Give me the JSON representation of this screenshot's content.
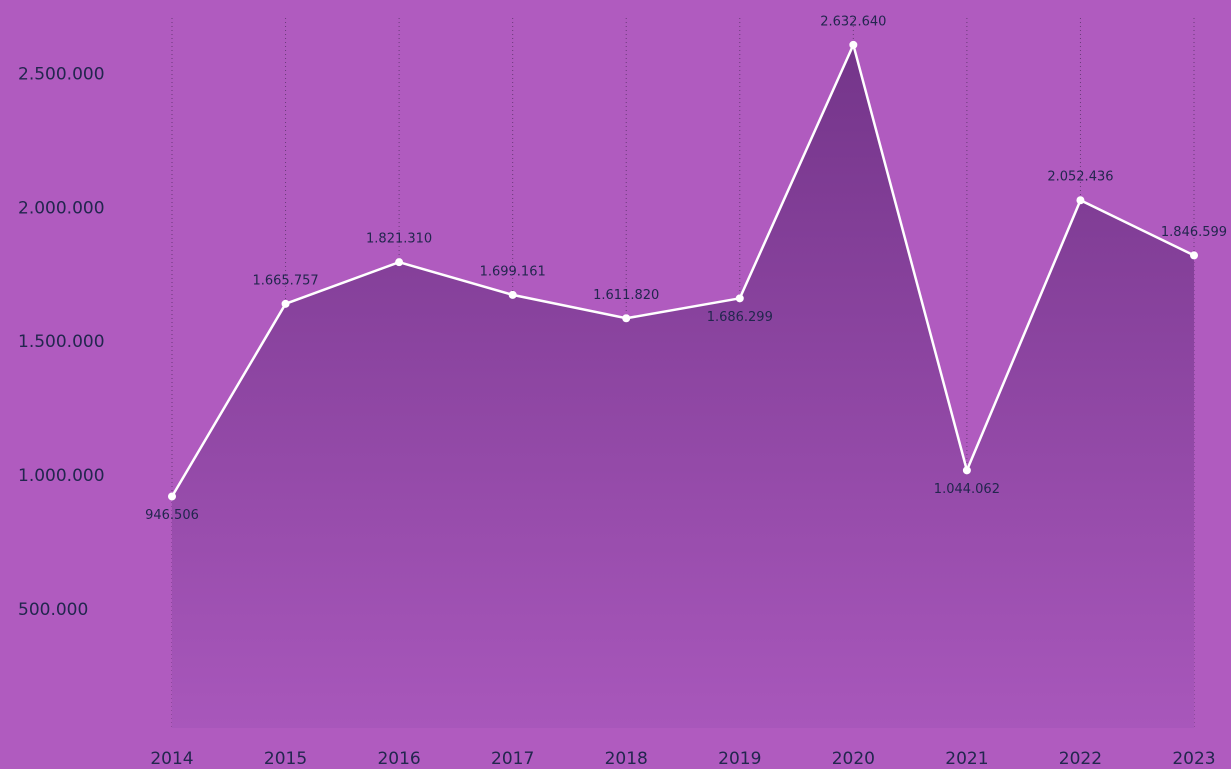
{
  "chart_data": {
    "type": "area",
    "categories": [
      "2014",
      "2015",
      "2016",
      "2017",
      "2018",
      "2019",
      "2020",
      "2021",
      "2022",
      "2023"
    ],
    "values": [
      946506,
      1665757,
      1821310,
      1699161,
      1611820,
      1686299,
      2632640,
      1044062,
      2052436,
      1846599
    ],
    "value_labels": [
      "946.506",
      "1.665.757",
      "1.821.310",
      "1.699.161",
      "1.611.820",
      "1.686.299",
      "2.632.640",
      "1.044.062",
      "2.052.436",
      "1.846.599"
    ],
    "color": "#ffffff",
    "ylim": [
      0,
      2800000
    ],
    "yticks": [
      {
        "value": 500000,
        "label": "500.000"
      },
      {
        "value": 1000000,
        "label": "1.000.000"
      },
      {
        "value": 1500000,
        "label": "1.500.000"
      },
      {
        "value": 2000000,
        "label": "2.000.000"
      },
      {
        "value": 2500000,
        "label": "2.500.000"
      }
    ]
  }
}
